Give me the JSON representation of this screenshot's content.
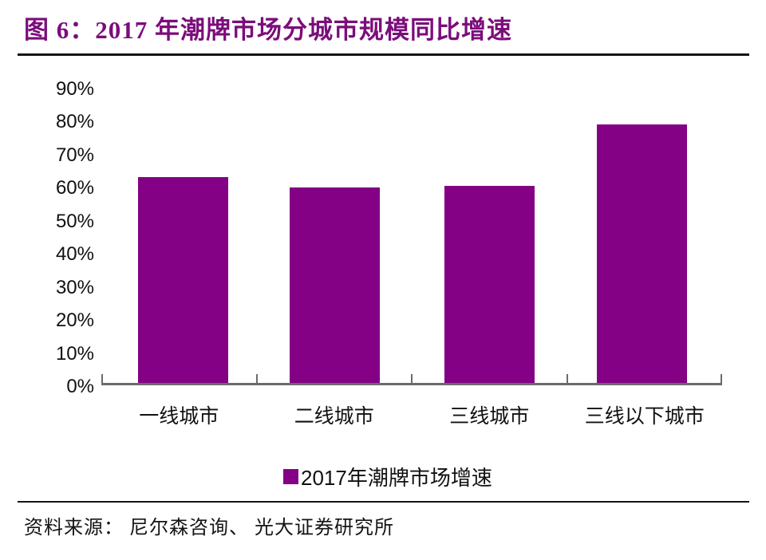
{
  "title": {
    "label": "图 6：2017 年潮牌市场分城市规模同比增速"
  },
  "chart_data": {
    "type": "bar",
    "title": "2017 年潮牌市场分城市规模同比增速",
    "categories": [
      "一线城市",
      "二线城市",
      "三线城市",
      "三线以下城市"
    ],
    "values": [
      62.5,
      59.5,
      60,
      78.5
    ],
    "unit": "%",
    "xlabel": "",
    "ylabel": "",
    "ylim": [
      0,
      90
    ],
    "ytick_step": 10,
    "ytick_labels": [
      "90%",
      "80%",
      "70%",
      "60%",
      "50%",
      "40%",
      "30%",
      "20%",
      "10%",
      "0%"
    ],
    "grid": false,
    "legend_position": "bottom",
    "legend": {
      "label": "2017年潮牌市场增速"
    },
    "bar_color": "#840085"
  },
  "footer": {
    "source": "资料来源： 尼尔森咨询、 光大证券研究所"
  },
  "colors": {
    "bar": "#840085",
    "title_text": "#7b0d7b",
    "axis_line": "#6a6a6a",
    "rule": "#151515",
    "text": "#111111",
    "background": "#ffffff"
  }
}
